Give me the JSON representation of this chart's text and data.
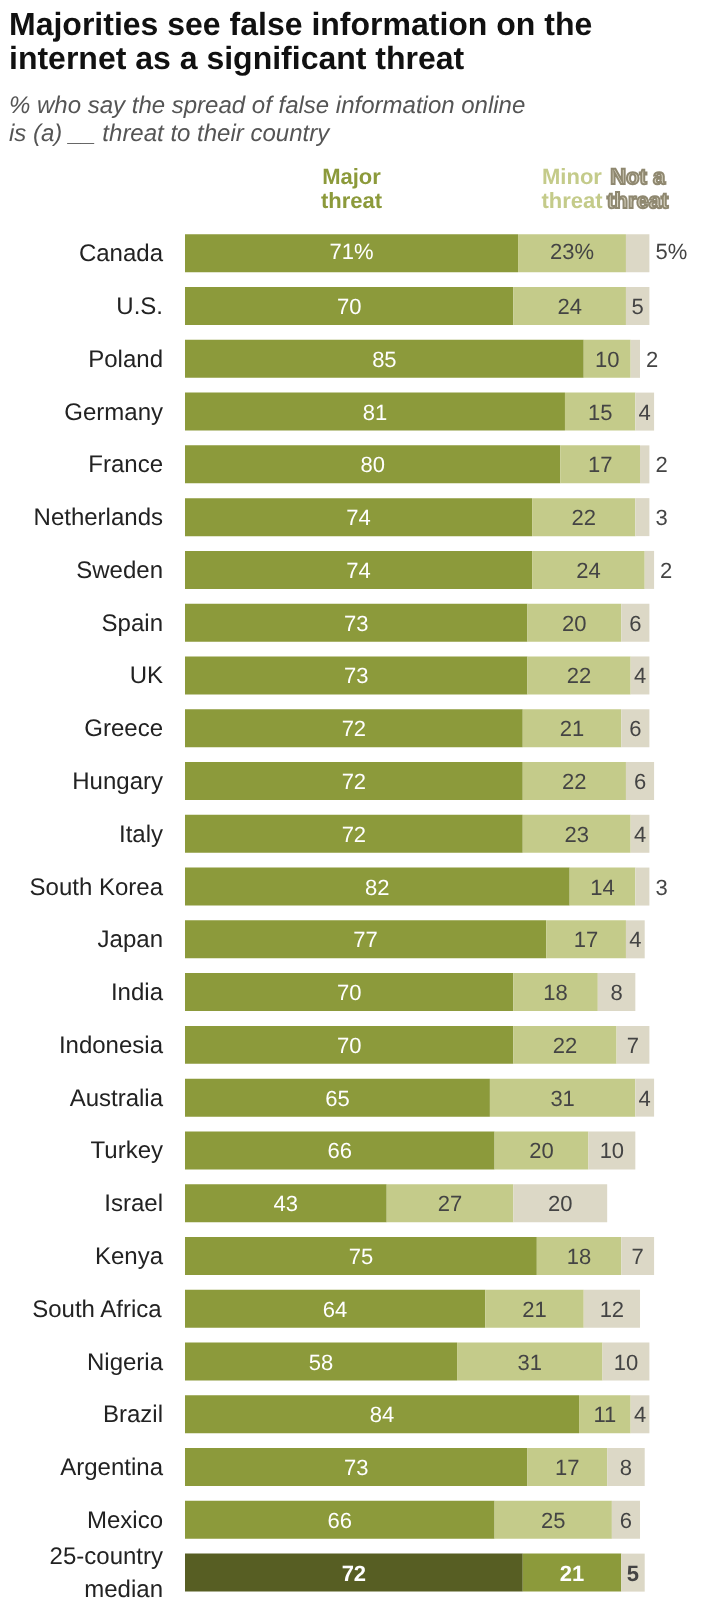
{
  "chart_data": {
    "type": "bar",
    "orientation": "horizontal",
    "stacked": true,
    "legend": "top",
    "grid": false,
    "tick_labels": "y",
    "title": "Majorities see false information on the internet as a significant threat",
    "subtitle": "% who say the spread of false information online is (a) __ threat to their country",
    "categories": [
      "Canada",
      "U.S.",
      "Poland",
      "Germany",
      "France",
      "Netherlands",
      "Sweden",
      "Spain",
      "UK",
      "Greece",
      "Hungary",
      "Italy",
      "South Korea",
      "Japan",
      "India",
      "Indonesia",
      "Australia",
      "Turkey",
      "Israel",
      "Kenya",
      "South Africa",
      "Nigeria",
      "Brazil",
      "Argentina",
      "Mexico",
      "25-country median"
    ],
    "series": [
      {
        "name": "Major threat",
        "color": "#8c9a3b",
        "colors": [
          "#8c9a3b",
          "#8c9a3b",
          "#8c9a3b",
          "#8c9a3b",
          "#8c9a3b",
          "#8c9a3b",
          "#8c9a3b",
          "#8c9a3b",
          "#8c9a3b",
          "#8c9a3b",
          "#8c9a3b",
          "#8c9a3b",
          "#8c9a3b",
          "#8c9a3b",
          "#8c9a3b",
          "#8c9a3b",
          "#8c9a3b",
          "#8c9a3b",
          "#8c9a3b",
          "#8c9a3b",
          "#8c9a3b",
          "#8c9a3b",
          "#8c9a3b",
          "#8c9a3b",
          "#8c9a3b",
          "#575e23"
        ],
        "values": [
          71,
          70,
          85,
          81,
          80,
          74,
          74,
          73,
          73,
          72,
          72,
          72,
          82,
          77,
          70,
          70,
          65,
          66,
          43,
          75,
          64,
          58,
          84,
          73,
          66,
          72
        ],
        "value_labels": [
          "71%",
          "70",
          "85",
          "81",
          "80",
          "74",
          "74",
          "73",
          "73",
          "72",
          "72",
          "72",
          "82",
          "77",
          "70",
          "70",
          "65",
          "66",
          "43",
          "75",
          "64",
          "58",
          "84",
          "73",
          "66",
          "72"
        ]
      },
      {
        "name": "Minor threat",
        "color": "#c4cb8a",
        "colors": [
          "#c4cb8a",
          "#c4cb8a",
          "#c4cb8a",
          "#c4cb8a",
          "#c4cb8a",
          "#c4cb8a",
          "#c4cb8a",
          "#c4cb8a",
          "#c4cb8a",
          "#c4cb8a",
          "#c4cb8a",
          "#c4cb8a",
          "#c4cb8a",
          "#c4cb8a",
          "#c4cb8a",
          "#c4cb8a",
          "#c4cb8a",
          "#c4cb8a",
          "#c4cb8a",
          "#c4cb8a",
          "#c4cb8a",
          "#c4cb8a",
          "#c4cb8a",
          "#c4cb8a",
          "#c4cb8a",
          "#8c9a3b"
        ],
        "values": [
          23,
          24,
          10,
          15,
          17,
          22,
          24,
          20,
          22,
          21,
          22,
          23,
          14,
          17,
          18,
          22,
          31,
          20,
          27,
          18,
          21,
          31,
          11,
          17,
          25,
          21
        ],
        "value_labels": [
          "23%",
          "24",
          "10",
          "15",
          "17",
          "22",
          "24",
          "20",
          "22",
          "21",
          "22",
          "23",
          "14",
          "17",
          "18",
          "22",
          "31",
          "20",
          "27",
          "18",
          "21",
          "31",
          "11",
          "17",
          "25",
          "21"
        ]
      },
      {
        "name": "Not a threat",
        "color": "#dcd8c6",
        "colors": [
          "#dcd8c6",
          "#dcd8c6",
          "#dcd8c6",
          "#dcd8c6",
          "#dcd8c6",
          "#dcd8c6",
          "#dcd8c6",
          "#dcd8c6",
          "#dcd8c6",
          "#dcd8c6",
          "#dcd8c6",
          "#dcd8c6",
          "#dcd8c6",
          "#dcd8c6",
          "#dcd8c6",
          "#dcd8c6",
          "#dcd8c6",
          "#dcd8c6",
          "#dcd8c6",
          "#dcd8c6",
          "#dcd8c6",
          "#dcd8c6",
          "#dcd8c6",
          "#dcd8c6",
          "#dcd8c6",
          "#dcd8c6"
        ],
        "values": [
          5,
          5,
          2,
          4,
          2,
          3,
          2,
          6,
          4,
          6,
          6,
          4,
          3,
          4,
          8,
          7,
          4,
          10,
          20,
          7,
          12,
          10,
          4,
          8,
          6,
          5
        ],
        "value_labels": [
          "5%",
          "5",
          "2",
          "4",
          "2",
          "3",
          "2",
          "6",
          "4",
          "6",
          "6",
          "4",
          "3",
          "4",
          "8",
          "7",
          "4",
          "10",
          "20",
          "7",
          "12",
          "10",
          "4",
          "8",
          "6",
          "5"
        ]
      }
    ]
  }
}
